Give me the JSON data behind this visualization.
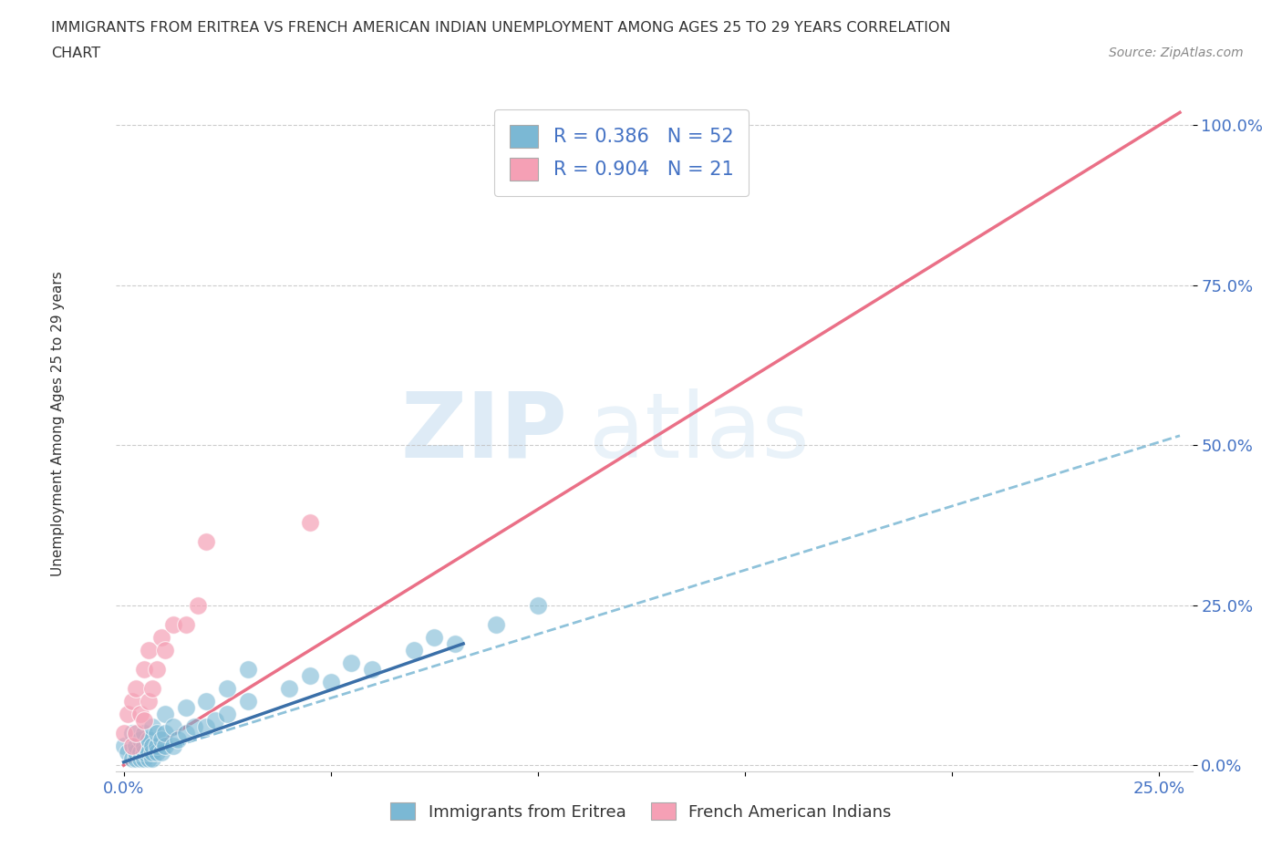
{
  "title_line1": "IMMIGRANTS FROM ERITREA VS FRENCH AMERICAN INDIAN UNEMPLOYMENT AMONG AGES 25 TO 29 YEARS CORRELATION",
  "title_line2": "CHART",
  "source_text": "Source: ZipAtlas.com",
  "ylabel": "Unemployment Among Ages 25 to 29 years",
  "xlim": [
    -0.002,
    0.258
  ],
  "ylim": [
    -0.01,
    1.05
  ],
  "ytick_labels": [
    "0.0%",
    "25.0%",
    "50.0%",
    "75.0%",
    "100.0%"
  ],
  "ytick_positions": [
    0.0,
    0.25,
    0.5,
    0.75,
    1.0
  ],
  "xtick_positions": [
    0.0,
    0.25
  ],
  "xtick_labels": [
    "0.0%",
    "25.0%"
  ],
  "watermark_zip": "ZIP",
  "watermark_atlas": "atlas",
  "color_blue": "#7bb8d4",
  "color_pink": "#f5a0b5",
  "trendline_blue_solid_color": "#3a6fa8",
  "trendline_blue_dash_color": "#7bb8d4",
  "trendline_pink_color": "#e8607a",
  "blue_scatter_x": [
    0.0,
    0.001,
    0.002,
    0.002,
    0.003,
    0.003,
    0.003,
    0.004,
    0.004,
    0.004,
    0.005,
    0.005,
    0.005,
    0.005,
    0.006,
    0.006,
    0.006,
    0.007,
    0.007,
    0.007,
    0.007,
    0.008,
    0.008,
    0.008,
    0.009,
    0.009,
    0.01,
    0.01,
    0.01,
    0.012,
    0.012,
    0.013,
    0.015,
    0.015,
    0.017,
    0.02,
    0.02,
    0.022,
    0.025,
    0.025,
    0.03,
    0.03,
    0.04,
    0.045,
    0.05,
    0.055,
    0.06,
    0.07,
    0.075,
    0.08,
    0.09,
    0.1
  ],
  "blue_scatter_y": [
    0.03,
    0.02,
    0.01,
    0.05,
    0.01,
    0.02,
    0.03,
    0.01,
    0.02,
    0.04,
    0.01,
    0.02,
    0.03,
    0.05,
    0.01,
    0.02,
    0.04,
    0.01,
    0.02,
    0.03,
    0.06,
    0.02,
    0.03,
    0.05,
    0.02,
    0.04,
    0.03,
    0.05,
    0.08,
    0.03,
    0.06,
    0.04,
    0.05,
    0.09,
    0.06,
    0.06,
    0.1,
    0.07,
    0.08,
    0.12,
    0.1,
    0.15,
    0.12,
    0.14,
    0.13,
    0.16,
    0.15,
    0.18,
    0.2,
    0.19,
    0.22,
    0.25
  ],
  "pink_scatter_x": [
    0.0,
    0.001,
    0.002,
    0.002,
    0.003,
    0.003,
    0.004,
    0.005,
    0.005,
    0.006,
    0.006,
    0.007,
    0.008,
    0.009,
    0.01,
    0.012,
    0.015,
    0.018,
    0.02,
    0.045,
    0.1
  ],
  "pink_scatter_y": [
    0.05,
    0.08,
    0.03,
    0.1,
    0.05,
    0.12,
    0.08,
    0.07,
    0.15,
    0.1,
    0.18,
    0.12,
    0.15,
    0.2,
    0.18,
    0.22,
    0.22,
    0.25,
    0.35,
    0.38,
    1.0
  ],
  "blue_solid_trend_x": [
    0.0,
    0.082
  ],
  "blue_solid_trend_y": [
    0.005,
    0.19
  ],
  "blue_dash_trend_x": [
    0.0,
    0.255
  ],
  "blue_dash_trend_y": [
    0.005,
    0.515
  ],
  "pink_trend_x": [
    0.0,
    0.255
  ],
  "pink_trend_y": [
    0.0,
    1.02
  ]
}
